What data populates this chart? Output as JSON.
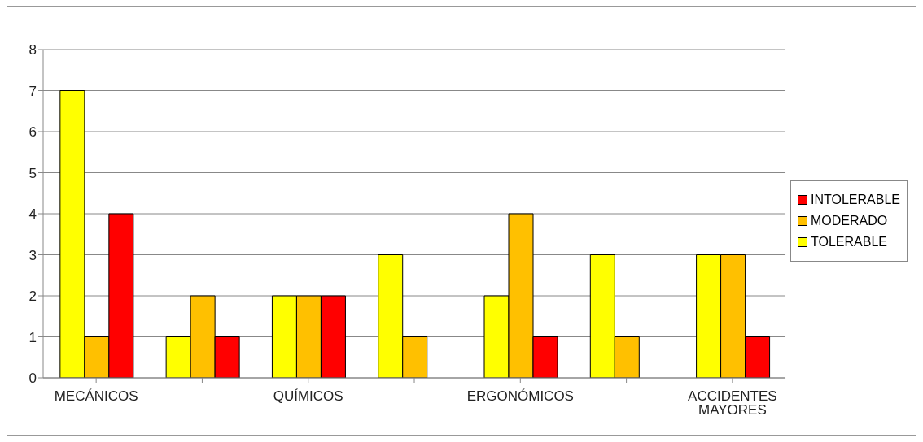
{
  "chart_data": {
    "type": "bar",
    "categories": [
      "MECÁNICOS",
      null,
      "QUÍMICOS",
      null,
      "ERGONÓMICOS",
      null,
      "ACCIDENTES MAYORES"
    ],
    "series": [
      {
        "name": "TOLERABLE",
        "color": "#ffff00",
        "values": [
          7,
          1,
          2,
          3,
          2,
          3,
          3
        ]
      },
      {
        "name": "MODERADO",
        "color": "#ffc000",
        "values": [
          1,
          2,
          2,
          1,
          4,
          1,
          3
        ]
      },
      {
        "name": "INTOLERABLE",
        "color": "#ff0000",
        "values": [
          4,
          1,
          2,
          null,
          1,
          null,
          1
        ]
      }
    ],
    "ylim": [
      0,
      8
    ],
    "yticks": [
      0,
      1,
      2,
      3,
      4,
      5,
      6,
      7,
      8
    ],
    "grid": "y",
    "legend": "right"
  }
}
